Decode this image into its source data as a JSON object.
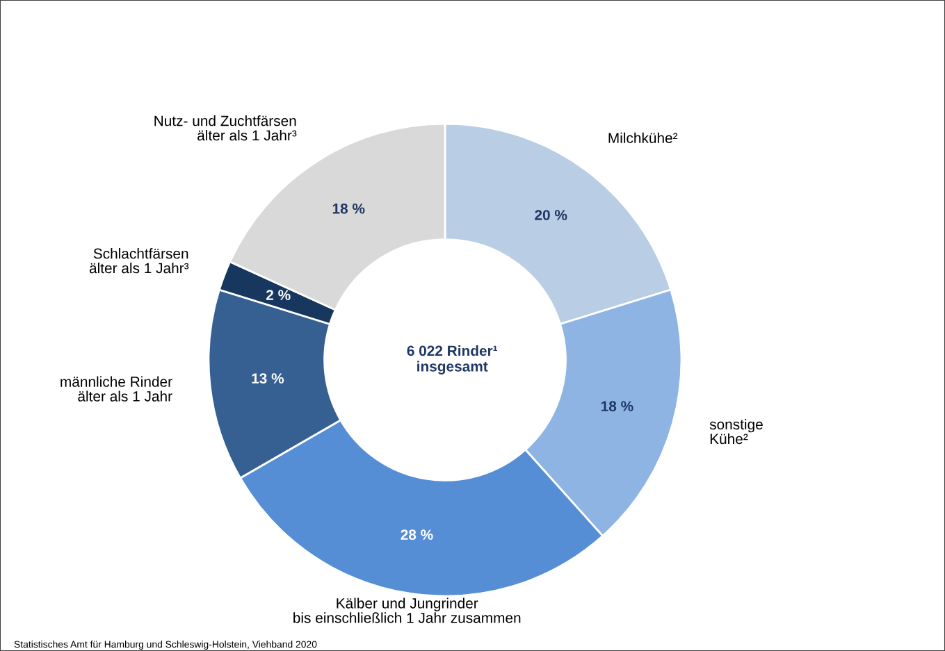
{
  "chart_data": {
    "type": "donut",
    "categories": [
      "Milchkühe²",
      "sonstige\nKühe²",
      "Kälber und Jungrinder\nbis einschließlich 1 Jahr zusammen",
      "männliche Rinder\nälter als 1 Jahr",
      "Schlachtfärsen\nälter als 1 Jahr³",
      "Nutz- und Zuchtfärsen\nälter als 1 Jahr³"
    ],
    "values": [
      20,
      18,
      28,
      13,
      2,
      18
    ],
    "value_labels": [
      "20 %",
      "18 %",
      "28 %",
      "13 %",
      "2 %",
      "18 %"
    ],
    "colors": [
      "#b9cde5",
      "#8eb4e3",
      "#558ed5",
      "#376092",
      "#17375e",
      "#d9d9d9"
    ],
    "legend": false,
    "annotations": [
      "6 022 Rinder¹\ninsgesamt",
      "Statistisches Amt für Hamburg und Schleswig-Holstein, Viehband 2020"
    ]
  }
}
